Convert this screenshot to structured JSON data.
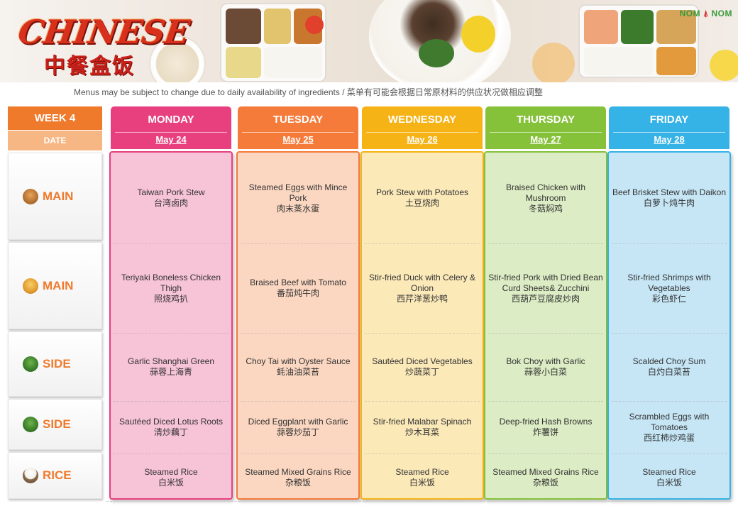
{
  "header": {
    "logo_en": "CHINESE",
    "logo_zh": "中餐盒饭",
    "brand_left": "NOM",
    "brand_right": "NOM",
    "note": "Menus may be subject to change due to daily availability of ingredients / 菜单有可能会根据日常原材料的供应状况做相应调整"
  },
  "labels": {
    "week": "WEEK 4",
    "date": "DATE"
  },
  "rows": [
    {
      "label": "MAIN",
      "icon": "noodle-bowl-icon"
    },
    {
      "label": "MAIN",
      "icon": "fries-icon"
    },
    {
      "label": "SIDE",
      "icon": "greens-icon"
    },
    {
      "label": "SIDE",
      "icon": "greens-icon"
    },
    {
      "label": "RICE",
      "icon": "rice-bowl-icon"
    }
  ],
  "days": [
    {
      "name": "MONDAY",
      "date": "May 24",
      "color": "#e8407e",
      "items": [
        {
          "en": "Taiwan Pork Stew",
          "zh": "台湾卤肉"
        },
        {
          "en": "Teriyaki Boneless Chicken Thigh",
          "zh": "照烧鸡扒"
        },
        {
          "en": "Garlic Shanghai Green",
          "zh": "蒜蓉上海青"
        },
        {
          "en": "Sautéed Diced Lotus Roots",
          "zh": "清炒藕丁"
        },
        {
          "en": "Steamed Rice",
          "zh": "白米饭"
        }
      ]
    },
    {
      "name": "TUESDAY",
      "date": "May 25",
      "color": "#f47b3a",
      "items": [
        {
          "en": "Steamed Eggs with Mince Pork",
          "zh": "肉末蒸水蛋"
        },
        {
          "en": "Braised Beef with Tomato",
          "zh": "番茄炖牛肉"
        },
        {
          "en": "Choy Tai with Oyster Sauce",
          "zh": "蚝油油菜苔"
        },
        {
          "en": "Diced  Eggplant with Garlic",
          "zh": "蒜蓉炒茄丁"
        },
        {
          "en": "Steamed Mixed Grains Rice",
          "zh": "杂粮饭"
        }
      ]
    },
    {
      "name": "WEDNESDAY",
      "date": "May 26",
      "color": "#f5b316",
      "items": [
        {
          "en": "Pork Stew with Potatoes",
          "zh": "土豆烧肉"
        },
        {
          "en": "Stir-fried Duck with Celery & Onion",
          "zh": "西芹洋葱炒鸭"
        },
        {
          "en": "Sautéed Diced Vegetables",
          "zh": "炒蔬菜丁"
        },
        {
          "en": "Stir-fried Malabar Spinach",
          "zh": "炒木耳菜"
        },
        {
          "en": "Steamed Rice",
          "zh": "白米饭"
        }
      ]
    },
    {
      "name": "THURSDAY",
      "date": "May 27",
      "color": "#86c13a",
      "items": [
        {
          "en": "Braised Chicken with Mushroom",
          "zh": "冬菇焖鸡"
        },
        {
          "en": "Stir-fried Pork with Dried Bean Curd Sheets& Zucchini",
          "zh": "西葫芦豆腐皮炒肉"
        },
        {
          "en": "Bok Choy with Garlic",
          "zh": "蒜蓉小白菜"
        },
        {
          "en": "Deep-fried Hash Browns",
          "zh": "炸薯饼"
        },
        {
          "en": "Steamed Mixed Grains Rice",
          "zh": "杂粮饭"
        }
      ]
    },
    {
      "name": "FRIDAY",
      "date": "May 28",
      "color": "#35b2e6",
      "items": [
        {
          "en": "Beef Brisket Stew with Daikon",
          "zh": "白萝卜炖牛肉"
        },
        {
          "en": "Stir-fried Shrimps with Vegetables",
          "zh": "彩色虾仁"
        },
        {
          "en": "Scalded Choy Sum",
          "zh": "白灼白菜苔"
        },
        {
          "en": "Scrambled Eggs with Tomatoes",
          "zh": "西红柿炒鸡蛋"
        },
        {
          "en": "Steamed Rice",
          "zh": "白米饭"
        }
      ]
    }
  ]
}
